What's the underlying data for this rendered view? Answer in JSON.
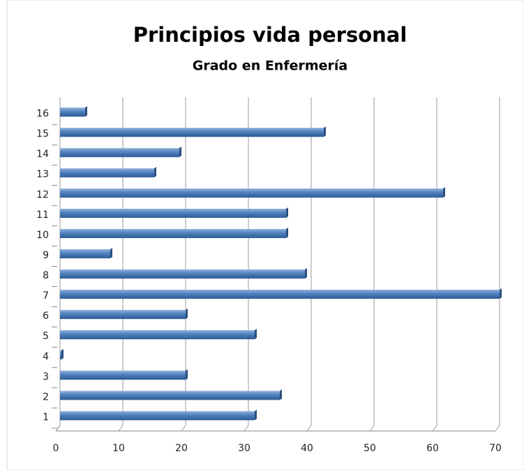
{
  "chart_data": {
    "type": "barh",
    "title": "Principios vida personal",
    "subtitle": "Grado en Enfermería",
    "categories": [
      "1",
      "2",
      "3",
      "4",
      "5",
      "6",
      "7",
      "8",
      "9",
      "10",
      "11",
      "12",
      "13",
      "14",
      "15",
      "16"
    ],
    "values": [
      31,
      35,
      20,
      0,
      31,
      20,
      70,
      39,
      8,
      36,
      36,
      61,
      15,
      19,
      42,
      4
    ],
    "color": "#4f81bd",
    "xlim": [
      0,
      70
    ],
    "xticks": [
      0,
      10,
      20,
      30,
      40,
      50,
      60,
      70
    ],
    "grid": true
  }
}
